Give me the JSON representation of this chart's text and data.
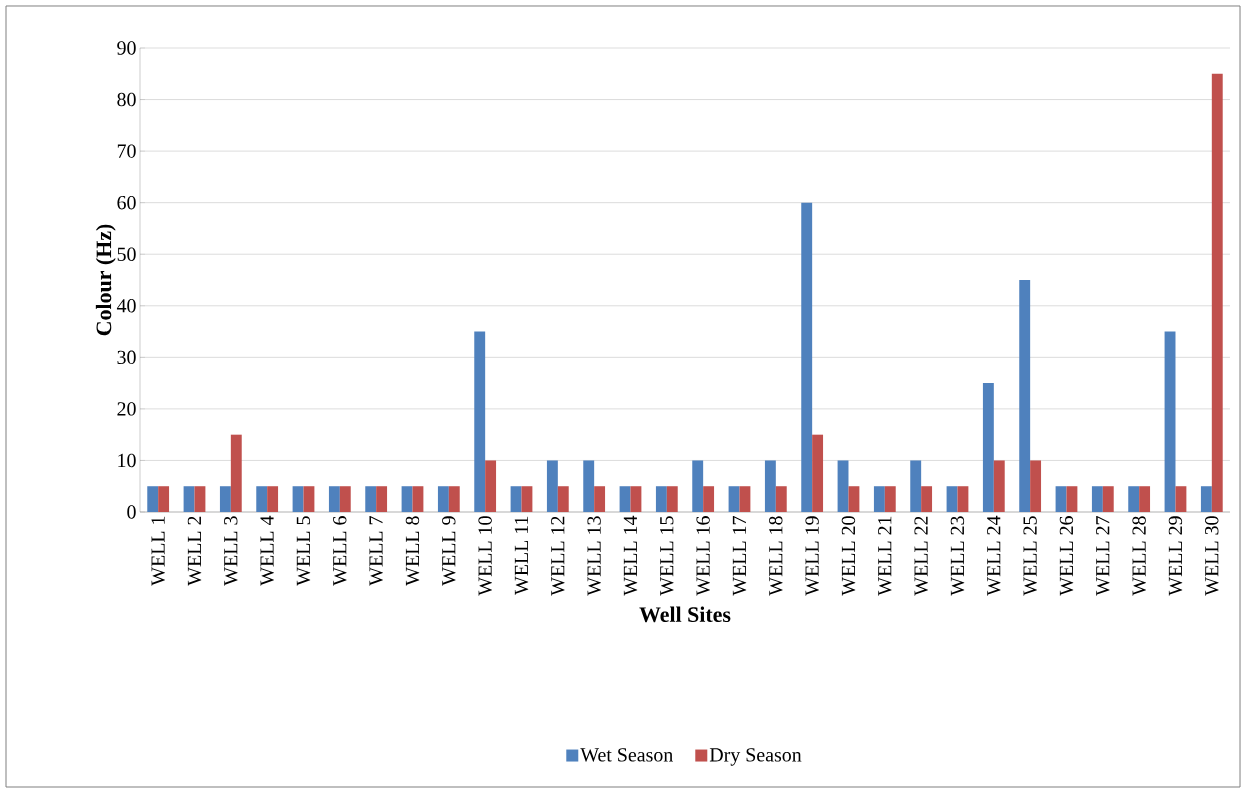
{
  "chart_data": {
    "type": "bar",
    "xlabel": "Well Sites",
    "ylabel": "Colour (Hz)",
    "categories": [
      "WELL 1",
      "WELL 2",
      "WELL 3",
      "WELL 4",
      "WELL 5",
      "WELL 6",
      "WELL 7",
      "WELL 8",
      "WELL 9",
      "WELL 10",
      "WELL 11",
      "WELL 12",
      "WELL 13",
      "WELL 14",
      "WELL 15",
      "WELL 16",
      "WELL 17",
      "WELL 18",
      "WELL 19",
      "WELL 20",
      "WELL 21",
      "WELL 22",
      "WELL 23",
      "WELL 24",
      "WELL 25",
      "WELL 26",
      "WELL 27",
      "WELL 28",
      "WELL 29",
      "WELL 30"
    ],
    "series": [
      {
        "name": "Wet Season",
        "color": "#4f81bd",
        "values": [
          5,
          5,
          5,
          5,
          5,
          5,
          5,
          5,
          5,
          35,
          5,
          10,
          10,
          5,
          5,
          10,
          5,
          10,
          60,
          10,
          5,
          10,
          5,
          25,
          45,
          5,
          5,
          5,
          35,
          5
        ]
      },
      {
        "name": "Dry Season",
        "color": "#c0504d",
        "values": [
          5,
          5,
          15,
          5,
          5,
          5,
          5,
          5,
          5,
          10,
          5,
          5,
          5,
          5,
          5,
          5,
          5,
          5,
          15,
          5,
          5,
          5,
          5,
          10,
          10,
          5,
          5,
          5,
          5,
          85
        ]
      }
    ],
    "ylim": [
      0,
      90
    ],
    "yticks": [
      0,
      10,
      20,
      30,
      40,
      50,
      60,
      70,
      80,
      90
    ],
    "grid": "y",
    "legend": "bottom"
  }
}
